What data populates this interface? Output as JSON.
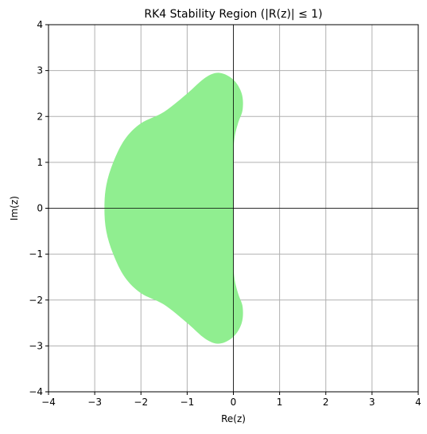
{
  "chart_data": {
    "type": "area",
    "title": "RK4 Stability Region (|R(z)| ≤ 1)",
    "xlabel": "Re(z)",
    "ylabel": "Im(z)",
    "xlim": [
      -4,
      4
    ],
    "ylim": [
      -4,
      4
    ],
    "xticks": [
      -4,
      -3,
      -2,
      -1,
      0,
      1,
      2,
      3,
      4
    ],
    "yticks": [
      -4,
      -3,
      -2,
      -1,
      0,
      1,
      2,
      3,
      4
    ],
    "xtick_labels": [
      "−4",
      "−3",
      "−2",
      "−1",
      "0",
      "1",
      "2",
      "3",
      "4"
    ],
    "ytick_labels": [
      "−4",
      "−3",
      "−2",
      "−1",
      "0",
      "1",
      "2",
      "3",
      "4"
    ],
    "grid": true,
    "reference_lines": {
      "x": 0,
      "y": 0
    },
    "fill_color": "#90ee90",
    "region_boundary": [
      {
        "x": -2.79,
        "y": 0.0
      },
      {
        "x": -2.75,
        "y": 0.5
      },
      {
        "x": -2.6,
        "y": 1.0
      },
      {
        "x": -2.35,
        "y": 1.5
      },
      {
        "x": -2.0,
        "y": 1.85
      },
      {
        "x": -1.5,
        "y": 2.1
      },
      {
        "x": -1.0,
        "y": 2.5
      },
      {
        "x": -0.6,
        "y": 2.85
      },
      {
        "x": -0.3,
        "y": 2.95
      },
      {
        "x": 0.0,
        "y": 2.8
      },
      {
        "x": 0.18,
        "y": 2.5
      },
      {
        "x": 0.2,
        "y": 2.15
      },
      {
        "x": 0.1,
        "y": 1.85
      },
      {
        "x": 0.02,
        "y": 1.5
      },
      {
        "x": 0.0,
        "y": 1.0
      },
      {
        "x": 0.0,
        "y": 0.0
      },
      {
        "x": 0.0,
        "y": -1.0
      },
      {
        "x": 0.02,
        "y": -1.5
      },
      {
        "x": 0.1,
        "y": -1.85
      },
      {
        "x": 0.2,
        "y": -2.15
      },
      {
        "x": 0.18,
        "y": -2.5
      },
      {
        "x": 0.0,
        "y": -2.8
      },
      {
        "x": -0.3,
        "y": -2.95
      },
      {
        "x": -0.6,
        "y": -2.85
      },
      {
        "x": -1.0,
        "y": -2.5
      },
      {
        "x": -1.5,
        "y": -2.1
      },
      {
        "x": -2.0,
        "y": -1.85
      },
      {
        "x": -2.35,
        "y": -1.5
      },
      {
        "x": -2.6,
        "y": -1.0
      },
      {
        "x": -2.75,
        "y": -0.5
      }
    ]
  }
}
